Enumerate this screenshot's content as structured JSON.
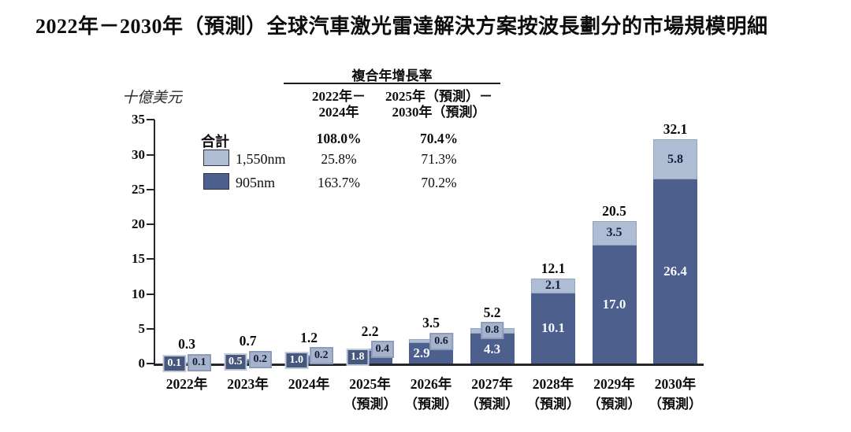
{
  "title": "2022年－2030年（預測）全球汽車激光雷達解決方案按波長劃分的市場規模明細",
  "y_axis": {
    "unit_label": "十億美元",
    "ticks": [
      0,
      5,
      10,
      15,
      20,
      25,
      30,
      35
    ],
    "max": 35
  },
  "cagr_table": {
    "header": "複合年增長率",
    "col_headers": [
      [
        "2022年－",
        "2024年"
      ],
      [
        "2025年（預測）－",
        "2030年（預測）"
      ]
    ],
    "rows": [
      {
        "label": "合計",
        "swatch": "none",
        "bold": true,
        "values": [
          "108.0%",
          "70.4%"
        ]
      },
      {
        "label": "1,550nm",
        "swatch": "light",
        "bold": false,
        "values": [
          "25.8%",
          "71.3%"
        ]
      },
      {
        "label": "905nm",
        "swatch": "dark",
        "bold": false,
        "values": [
          "163.7%",
          "70.2%"
        ]
      }
    ]
  },
  "colors": {
    "dark_bar": "#4d5f8c",
    "light_bar": "#aebcd4",
    "light_bar_border": "#93a4c1",
    "dark_chip_bg": "#47587f",
    "light_chip_bg": "#a6b3cb",
    "axis": "#23262b",
    "navy_text": "#16213c"
  },
  "chart_data": {
    "type": "bar",
    "stacked": true,
    "title": "2022年－2030年（預測）全球汽車激光雷達解決方案按波長劃分的市場規模明細",
    "ylabel": "十億美元",
    "ylim": [
      0,
      35
    ],
    "grid": false,
    "legend_position": "upper-left",
    "categories": [
      "2022年",
      "2023年",
      "2024年",
      "2025年（預測）",
      "2026年（預測）",
      "2027年（預測）",
      "2028年（預測）",
      "2029年（預測）",
      "2030年（預測）"
    ],
    "x_labels": [
      {
        "line1": "2022年",
        "line2": ""
      },
      {
        "line1": "2023年",
        "line2": ""
      },
      {
        "line1": "2024年",
        "line2": ""
      },
      {
        "line1": "2025年",
        "line2": "（預測）"
      },
      {
        "line1": "2026年",
        "line2": "（預測）"
      },
      {
        "line1": "2027年",
        "line2": "（預測）"
      },
      {
        "line1": "2028年",
        "line2": "（預測）"
      },
      {
        "line1": "2029年",
        "line2": "（預測）"
      },
      {
        "line1": "2030年",
        "line2": "（預測）"
      }
    ],
    "series": [
      {
        "name": "905nm",
        "values": [
          0.1,
          0.5,
          1.0,
          1.8,
          2.9,
          4.3,
          10.1,
          17.0,
          26.4
        ]
      },
      {
        "name": "1,550nm",
        "values": [
          0.1,
          0.2,
          0.2,
          0.4,
          0.6,
          0.8,
          2.1,
          3.5,
          5.8
        ]
      }
    ],
    "totals": [
      0.3,
      0.7,
      1.2,
      2.2,
      3.5,
      5.2,
      12.1,
      20.5,
      32.1
    ],
    "total_label": "合計",
    "label_layouts": [
      "chips",
      "chips",
      "chips",
      "chips",
      "chip-right",
      "chip-top",
      "inside",
      "inside",
      "inside"
    ],
    "value_labels": {
      "905nm": [
        "0.1",
        "0.5",
        "1.0",
        "1.8",
        "2.9",
        "4.3",
        "10.1",
        "17.0",
        "26.4"
      ],
      "1550nm": [
        "0.1",
        "0.2",
        "0.2",
        "0.4",
        "0.6",
        "0.8",
        "2.1",
        "3.5",
        "5.8"
      ],
      "totals": [
        "0.3",
        "0.7",
        "1.2",
        "2.2",
        "3.5",
        "5.2",
        "12.1",
        "20.5",
        "32.1"
      ]
    }
  }
}
